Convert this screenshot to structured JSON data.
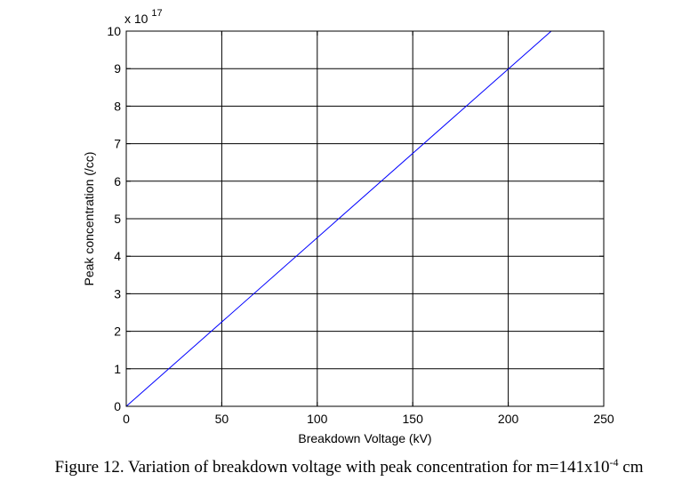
{
  "caption": {
    "text_before": "Figure 12. Variation of breakdown voltage with peak concentration for m=141x10",
    "exponent": "-4",
    "text_after": " cm"
  },
  "chart_data": {
    "type": "line",
    "title": "",
    "xlabel": "Breakdown Voltage (kV)",
    "ylabel": "Peak concentration (/cc)",
    "xlim": [
      0,
      250
    ],
    "ylim": [
      0,
      10
    ],
    "y_multiplier_label": "x 10",
    "y_multiplier_exponent": "17",
    "x_ticks": [
      0,
      50,
      100,
      150,
      200,
      250
    ],
    "y_ticks": [
      0,
      1,
      2,
      3,
      4,
      5,
      6,
      7,
      8,
      9,
      10
    ],
    "x_tick_labels": [
      "0",
      "50",
      "100",
      "150",
      "200",
      "250"
    ],
    "y_tick_labels": [
      "0",
      "1",
      "2",
      "3",
      "4",
      "5",
      "6",
      "7",
      "8",
      "9",
      "10"
    ],
    "grid": true,
    "series": [
      {
        "color": "#0000ff",
        "x": [
          0,
          222.5
        ],
        "y": [
          0,
          10
        ]
      }
    ]
  }
}
